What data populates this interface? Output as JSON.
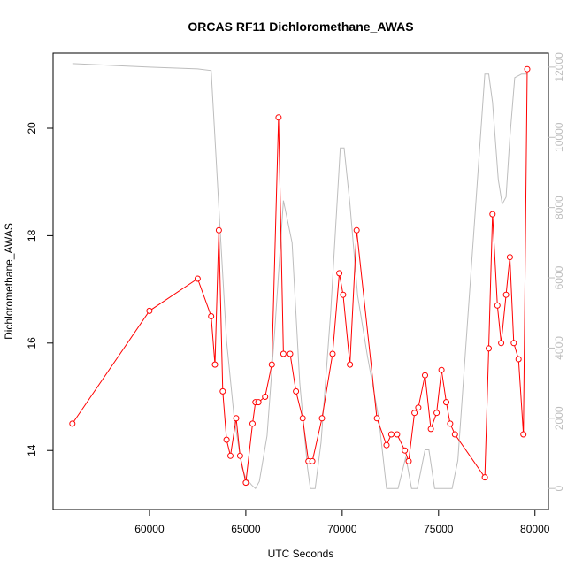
{
  "chart_data": {
    "type": "line",
    "title": "ORCAS RF11 Dichloromethane_AWAS",
    "xlabel": "UTC Seconds",
    "ylabel": "Dichloromethane_AWAS",
    "xlim": [
      55000,
      80700
    ],
    "ylim": [
      12.9,
      21.4
    ],
    "y2lim": [
      -600,
      12400
    ],
    "xticks": [
      60000,
      65000,
      70000,
      75000,
      80000
    ],
    "yticks": [
      14,
      16,
      18,
      20
    ],
    "y2ticks": [
      0,
      2000,
      4000,
      6000,
      8000,
      10000,
      12000
    ],
    "series": [
      {
        "color": "#ff0000",
        "marker": "circle",
        "x": [
          56000,
          60000,
          62500,
          63200,
          63400,
          63600,
          63800,
          64000,
          64200,
          64500,
          64700,
          65000,
          65350,
          65500,
          65650,
          66000,
          66350,
          66700,
          66950,
          67300,
          67600,
          67950,
          68250,
          68450,
          68950,
          69500,
          69850,
          70050,
          70400,
          70750,
          71800,
          72300,
          72550,
          72850,
          73250,
          73450,
          73750,
          73950,
          74300,
          74600,
          74900,
          75150,
          75400,
          75600,
          75850,
          77400,
          77600,
          77800,
          78050,
          78250,
          78500,
          78700,
          78900,
          79150,
          79400,
          79600
        ],
        "y": [
          14.5,
          16.6,
          17.2,
          16.5,
          15.6,
          18.1,
          15.1,
          14.2,
          13.9,
          14.6,
          13.9,
          13.4,
          14.5,
          14.9,
          14.9,
          15.0,
          15.6,
          20.2,
          15.8,
          15.8,
          15.1,
          14.6,
          13.8,
          13.8,
          14.6,
          15.8,
          17.3,
          16.9,
          15.6,
          18.1,
          14.6,
          14.1,
          14.3,
          14.3,
          14.0,
          13.8,
          14.7,
          14.8,
          15.4,
          14.4,
          14.7,
          15.5,
          14.9,
          14.5,
          14.3,
          13.5,
          15.9,
          18.4,
          16.7,
          16.0,
          16.9,
          17.6,
          16.0,
          15.7,
          14.3,
          21.1
        ]
      },
      {
        "color": "#bdbdbd",
        "axis": "right",
        "x": [
          56000,
          60000,
          62500,
          63200,
          63600,
          64000,
          64400,
          64800,
          65000,
          65300,
          65500,
          65700,
          66100,
          66500,
          66950,
          67400,
          67800,
          68200,
          68350,
          68600,
          68900,
          69400,
          69900,
          70100,
          70400,
          70800,
          71300,
          71900,
          72300,
          72500,
          72900,
          73300,
          73600,
          73900,
          74300,
          74500,
          74800,
          75100,
          75400,
          75700,
          76000,
          77400,
          77600,
          77800,
          78100,
          78300,
          78500,
          78700,
          78950,
          79300,
          79600
        ],
        "y": [
          12100,
          12000,
          11950,
          11900,
          8000,
          4200,
          2000,
          600,
          300,
          100,
          0,
          200,
          1500,
          4500,
          8200,
          7000,
          3000,
          600,
          0,
          0,
          1300,
          5000,
          9700,
          9700,
          8100,
          5500,
          3800,
          2000,
          0,
          0,
          0,
          900,
          0,
          0,
          1100,
          1100,
          0,
          0,
          0,
          0,
          800,
          11800,
          11800,
          11000,
          8800,
          8100,
          8300,
          10000,
          11700,
          11800,
          11800
        ]
      }
    ]
  }
}
